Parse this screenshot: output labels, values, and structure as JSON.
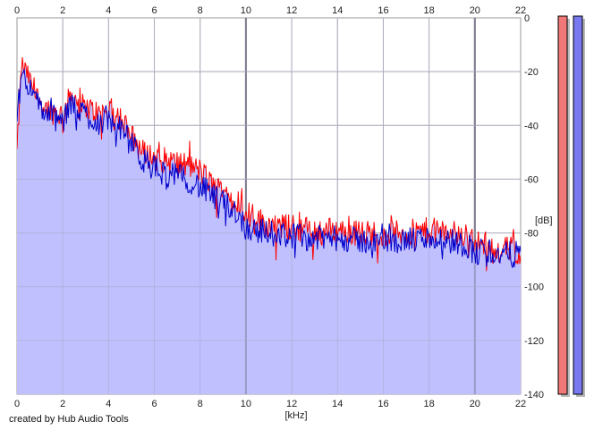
{
  "chart_data": {
    "type": "area",
    "xlabel": "[kHz]",
    "ylabel": "[dB]",
    "xlim": [
      0,
      22
    ],
    "ylim": [
      -140,
      0
    ],
    "x_ticks": [
      "0",
      "2",
      "4",
      "6",
      "8",
      "10",
      "12",
      "14",
      "16",
      "18",
      "20",
      "22"
    ],
    "y_ticks": [
      "0",
      "-20",
      "-40",
      "-60",
      "-80",
      "-100",
      "-120",
      "-140"
    ],
    "grid": true,
    "fill_color": "#c0c0ff",
    "series": [
      {
        "color": "#ff0000",
        "x": [
          0,
          0.2,
          0.5,
          0.8,
          1.2,
          1.6,
          2.0,
          2.4,
          2.8,
          3.2,
          3.6,
          4.0,
          4.5,
          5.0,
          5.5,
          6.0,
          6.5,
          7.0,
          7.5,
          8.0,
          8.5,
          9.0,
          9.5,
          10.0,
          10.5,
          11.0,
          12.0,
          13.0,
          14.0,
          15.0,
          16.0,
          17.0,
          18.0,
          19.0,
          19.8,
          20.0,
          20.5,
          21.0,
          21.5,
          22.0
        ],
        "values": [
          -50,
          -17,
          -22,
          -28,
          -33,
          -35,
          -36,
          -28,
          -33,
          -34,
          -36,
          -34,
          -37,
          -44,
          -50,
          -52,
          -53,
          -54,
          -55,
          -57,
          -62,
          -64,
          -66,
          -72,
          -75,
          -77,
          -78,
          -79,
          -79,
          -80,
          -80,
          -80,
          -79,
          -80,
          -81,
          -84,
          -84,
          -86,
          -86,
          -87
        ]
      },
      {
        "color": "#0000cc",
        "x": [
          0,
          0.2,
          0.5,
          0.8,
          1.2,
          1.6,
          2.0,
          2.4,
          2.8,
          3.2,
          3.6,
          4.0,
          4.5,
          5.0,
          5.5,
          6.0,
          6.5,
          7.0,
          7.5,
          8.0,
          8.5,
          9.0,
          9.5,
          10.0,
          10.5,
          11.0,
          12.0,
          13.0,
          14.0,
          15.0,
          16.0,
          17.0,
          18.0,
          19.0,
          19.8,
          20.0,
          20.5,
          21.0,
          21.5,
          22.0
        ],
        "values": [
          -40,
          -20,
          -25,
          -30,
          -35,
          -37,
          -39,
          -32,
          -35,
          -37,
          -39,
          -38,
          -41,
          -47,
          -53,
          -56,
          -58,
          -59,
          -60,
          -63,
          -66,
          -69,
          -71,
          -78,
          -79,
          -80,
          -81,
          -82,
          -82,
          -83,
          -83,
          -83,
          -82,
          -83,
          -85,
          -88,
          -86,
          -88,
          -88,
          -88
        ]
      }
    ],
    "meters": [
      {
        "color": "#f07878",
        "level": 1.0
      },
      {
        "color": "#7878f0",
        "level": 1.0
      }
    ]
  },
  "credit": "created by Hub Audio Tools"
}
